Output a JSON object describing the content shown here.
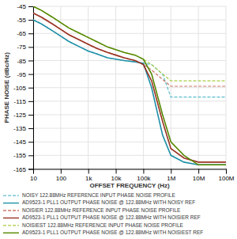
{
  "chart_data": {
    "type": "line",
    "xlabel": "OFFSET FREQUENCY (Hz)",
    "ylabel": "PHASE NOISE (dBc/Hz)",
    "log": "x",
    "grid": true,
    "legend": "bottom",
    "xlim": [
      10,
      100000000
    ],
    "xticks": [
      10,
      100,
      {
        "value": 1000,
        "label": "1k"
      },
      {
        "value": 10000,
        "label": "10k"
      },
      {
        "value": 100000,
        "label": "100k"
      },
      {
        "value": 1000000,
        "label": "1M"
      },
      {
        "value": 10000000,
        "label": "10M"
      },
      {
        "value": 100000000,
        "label": "100M"
      }
    ],
    "ylim": [
      -165,
      -45
    ],
    "yticks": [
      -165,
      -155,
      -145,
      -135,
      -125,
      -115,
      -105,
      -95,
      -85,
      -75,
      -65,
      -55,
      -45
    ],
    "x": [
      10,
      20,
      50,
      100,
      200,
      500,
      1000,
      2000,
      5000,
      10000,
      20000,
      50000,
      100000,
      200000,
      500000,
      1000000,
      3000000,
      10000000,
      100000000
    ],
    "series": [
      {
        "name": "NOISY 122.88MHz REFERENCE INPUT PHASE NOISE PROFILE",
        "color": "#5bbccc",
        "line_style": "dashed",
        "values": [
          -55,
          -58,
          -63,
          -67,
          -71,
          -75,
          -78,
          -80,
          -83,
          -84,
          -85,
          -86,
          -87,
          -88,
          -95,
          -112,
          -112,
          -112,
          -112
        ]
      },
      {
        "name": "AD9523-1 PLL1 OUTPUT PHASE NOISE @ 122.88MHz WITH NOISY REF",
        "color": "#2090a8",
        "line_style": "solid",
        "values": [
          -55,
          -58,
          -63,
          -67,
          -71,
          -75,
          -78,
          -80,
          -83,
          -84,
          -85,
          -86,
          -87,
          -105,
          -140,
          -155,
          -160,
          -162,
          -162
        ]
      },
      {
        "name": "NOISIER 122.88MHz REFERENCE INPUT PHASE NOISE PROFILE",
        "color": "#cc7766",
        "line_style": "dashed",
        "values": [
          -50,
          -53,
          -58,
          -62,
          -66,
          -70,
          -73,
          -76,
          -79,
          -81,
          -83,
          -85,
          -88,
          -92,
          -99,
          -104,
          -104,
          -104,
          -104
        ]
      },
      {
        "name": "AD9523-1 PLL1 OUTPUT PHASE NOISE @ 122.88MHz WITH NOISIER REF",
        "color": "#993322",
        "line_style": "solid",
        "values": [
          -50,
          -53,
          -58,
          -62,
          -66,
          -70,
          -73,
          -76,
          -79,
          -81,
          -83,
          -85,
          -88,
          -100,
          -130,
          -150,
          -157,
          -160,
          -160
        ]
      },
      {
        "name": "NOISIEST 122.88MHz REFERENCE INPUT PHASE NOISE PROFILE",
        "color": "#aacc44",
        "line_style": "dashed",
        "values": [
          -45,
          -48,
          -53,
          -57,
          -61,
          -65,
          -68,
          -71,
          -75,
          -77,
          -79,
          -81,
          -84,
          -88,
          -95,
          -100,
          -100,
          -100,
          -100
        ]
      },
      {
        "name": "AD9523-1 PLL1 OUTPUT PHASE NOISE @ 122.88MHz WITH NOISIEST REF",
        "color": "#558800",
        "line_style": "solid",
        "values": [
          -45,
          -48,
          -53,
          -57,
          -61,
          -65,
          -68,
          -71,
          -75,
          -77,
          -79,
          -81,
          -84,
          -95,
          -125,
          -145,
          -155,
          -162,
          -162
        ]
      }
    ]
  }
}
